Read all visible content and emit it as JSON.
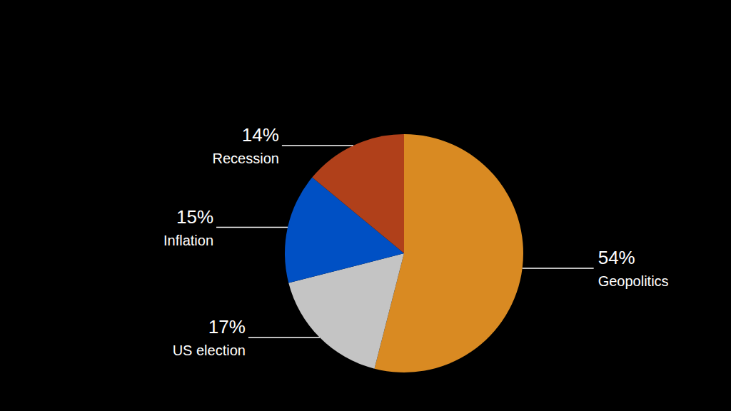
{
  "chart_data": {
    "type": "pie",
    "categories": [
      "Geopolitics",
      "US election",
      "Inflation",
      "Recession"
    ],
    "values": [
      54,
      17,
      15,
      14
    ],
    "value_labels": [
      "54%",
      "17%",
      "15%",
      "14%"
    ],
    "colors": [
      "#d98a22",
      "#c4c4c4",
      "#0050c4",
      "#b0401a"
    ],
    "data_labels": true
  }
}
